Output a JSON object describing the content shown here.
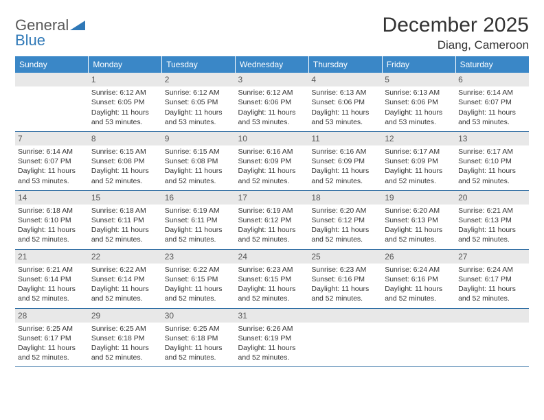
{
  "logo": {
    "text1": "General",
    "text2": "Blue"
  },
  "title": "December 2025",
  "location": "Diang, Cameroon",
  "colors": {
    "header_bg": "#3a87c7",
    "header_text": "#ffffff",
    "daynum_bg": "#e8e8e8",
    "border": "#2f6da3",
    "body_text": "#333333",
    "logo_gray": "#5a5a5a",
    "logo_blue": "#2f78b7"
  },
  "typography": {
    "title_fontsize": 30,
    "location_fontsize": 17,
    "dayheader_fontsize": 12,
    "cell_fontsize": 10.5
  },
  "day_headers": [
    "Sunday",
    "Monday",
    "Tuesday",
    "Wednesday",
    "Thursday",
    "Friday",
    "Saturday"
  ],
  "weeks": [
    [
      {
        "n": "",
        "lines": []
      },
      {
        "n": "1",
        "lines": [
          "Sunrise: 6:12 AM",
          "Sunset: 6:05 PM",
          "Daylight: 11 hours and 53 minutes."
        ]
      },
      {
        "n": "2",
        "lines": [
          "Sunrise: 6:12 AM",
          "Sunset: 6:05 PM",
          "Daylight: 11 hours and 53 minutes."
        ]
      },
      {
        "n": "3",
        "lines": [
          "Sunrise: 6:12 AM",
          "Sunset: 6:06 PM",
          "Daylight: 11 hours and 53 minutes."
        ]
      },
      {
        "n": "4",
        "lines": [
          "Sunrise: 6:13 AM",
          "Sunset: 6:06 PM",
          "Daylight: 11 hours and 53 minutes."
        ]
      },
      {
        "n": "5",
        "lines": [
          "Sunrise: 6:13 AM",
          "Sunset: 6:06 PM",
          "Daylight: 11 hours and 53 minutes."
        ]
      },
      {
        "n": "6",
        "lines": [
          "Sunrise: 6:14 AM",
          "Sunset: 6:07 PM",
          "Daylight: 11 hours and 53 minutes."
        ]
      }
    ],
    [
      {
        "n": "7",
        "lines": [
          "Sunrise: 6:14 AM",
          "Sunset: 6:07 PM",
          "Daylight: 11 hours and 53 minutes."
        ]
      },
      {
        "n": "8",
        "lines": [
          "Sunrise: 6:15 AM",
          "Sunset: 6:08 PM",
          "Daylight: 11 hours and 52 minutes."
        ]
      },
      {
        "n": "9",
        "lines": [
          "Sunrise: 6:15 AM",
          "Sunset: 6:08 PM",
          "Daylight: 11 hours and 52 minutes."
        ]
      },
      {
        "n": "10",
        "lines": [
          "Sunrise: 6:16 AM",
          "Sunset: 6:09 PM",
          "Daylight: 11 hours and 52 minutes."
        ]
      },
      {
        "n": "11",
        "lines": [
          "Sunrise: 6:16 AM",
          "Sunset: 6:09 PM",
          "Daylight: 11 hours and 52 minutes."
        ]
      },
      {
        "n": "12",
        "lines": [
          "Sunrise: 6:17 AM",
          "Sunset: 6:09 PM",
          "Daylight: 11 hours and 52 minutes."
        ]
      },
      {
        "n": "13",
        "lines": [
          "Sunrise: 6:17 AM",
          "Sunset: 6:10 PM",
          "Daylight: 11 hours and 52 minutes."
        ]
      }
    ],
    [
      {
        "n": "14",
        "lines": [
          "Sunrise: 6:18 AM",
          "Sunset: 6:10 PM",
          "Daylight: 11 hours and 52 minutes."
        ]
      },
      {
        "n": "15",
        "lines": [
          "Sunrise: 6:18 AM",
          "Sunset: 6:11 PM",
          "Daylight: 11 hours and 52 minutes."
        ]
      },
      {
        "n": "16",
        "lines": [
          "Sunrise: 6:19 AM",
          "Sunset: 6:11 PM",
          "Daylight: 11 hours and 52 minutes."
        ]
      },
      {
        "n": "17",
        "lines": [
          "Sunrise: 6:19 AM",
          "Sunset: 6:12 PM",
          "Daylight: 11 hours and 52 minutes."
        ]
      },
      {
        "n": "18",
        "lines": [
          "Sunrise: 6:20 AM",
          "Sunset: 6:12 PM",
          "Daylight: 11 hours and 52 minutes."
        ]
      },
      {
        "n": "19",
        "lines": [
          "Sunrise: 6:20 AM",
          "Sunset: 6:13 PM",
          "Daylight: 11 hours and 52 minutes."
        ]
      },
      {
        "n": "20",
        "lines": [
          "Sunrise: 6:21 AM",
          "Sunset: 6:13 PM",
          "Daylight: 11 hours and 52 minutes."
        ]
      }
    ],
    [
      {
        "n": "21",
        "lines": [
          "Sunrise: 6:21 AM",
          "Sunset: 6:14 PM",
          "Daylight: 11 hours and 52 minutes."
        ]
      },
      {
        "n": "22",
        "lines": [
          "Sunrise: 6:22 AM",
          "Sunset: 6:14 PM",
          "Daylight: 11 hours and 52 minutes."
        ]
      },
      {
        "n": "23",
        "lines": [
          "Sunrise: 6:22 AM",
          "Sunset: 6:15 PM",
          "Daylight: 11 hours and 52 minutes."
        ]
      },
      {
        "n": "24",
        "lines": [
          "Sunrise: 6:23 AM",
          "Sunset: 6:15 PM",
          "Daylight: 11 hours and 52 minutes."
        ]
      },
      {
        "n": "25",
        "lines": [
          "Sunrise: 6:23 AM",
          "Sunset: 6:16 PM",
          "Daylight: 11 hours and 52 minutes."
        ]
      },
      {
        "n": "26",
        "lines": [
          "Sunrise: 6:24 AM",
          "Sunset: 6:16 PM",
          "Daylight: 11 hours and 52 minutes."
        ]
      },
      {
        "n": "27",
        "lines": [
          "Sunrise: 6:24 AM",
          "Sunset: 6:17 PM",
          "Daylight: 11 hours and 52 minutes."
        ]
      }
    ],
    [
      {
        "n": "28",
        "lines": [
          "Sunrise: 6:25 AM",
          "Sunset: 6:17 PM",
          "Daylight: 11 hours and 52 minutes."
        ]
      },
      {
        "n": "29",
        "lines": [
          "Sunrise: 6:25 AM",
          "Sunset: 6:18 PM",
          "Daylight: 11 hours and 52 minutes."
        ]
      },
      {
        "n": "30",
        "lines": [
          "Sunrise: 6:25 AM",
          "Sunset: 6:18 PM",
          "Daylight: 11 hours and 52 minutes."
        ]
      },
      {
        "n": "31",
        "lines": [
          "Sunrise: 6:26 AM",
          "Sunset: 6:19 PM",
          "Daylight: 11 hours and 52 minutes."
        ]
      },
      {
        "n": "",
        "lines": []
      },
      {
        "n": "",
        "lines": []
      },
      {
        "n": "",
        "lines": []
      }
    ]
  ]
}
